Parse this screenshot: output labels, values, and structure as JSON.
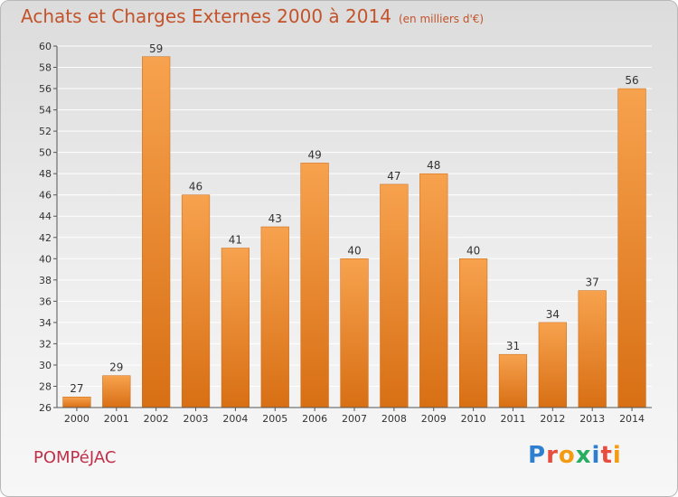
{
  "header": {
    "title": "Achats et Charges Externes 2000 à 2014",
    "subtitle": "(en milliers d'€)"
  },
  "footer": {
    "commune": "POMPéJAC",
    "brand_letters": [
      "P",
      "r",
      "o",
      "x",
      "i",
      "t",
      "i"
    ],
    "brand_colors": [
      "#2f7fd1",
      "#e74c3c",
      "#f39c12",
      "#27ae60",
      "#2f7fd1",
      "#e74c3c",
      "#f39c12"
    ]
  },
  "chart_data": {
    "type": "bar",
    "title": "Achats et Charges Externes 2000 à 2014",
    "categories": [
      "2000",
      "2001",
      "2002",
      "2003",
      "2004",
      "2005",
      "2006",
      "2007",
      "2008",
      "2009",
      "2010",
      "2011",
      "2012",
      "2013",
      "2014"
    ],
    "values": [
      27,
      29,
      59,
      46,
      41,
      43,
      49,
      40,
      47,
      48,
      40,
      31,
      34,
      37,
      56
    ],
    "ylim": [
      26,
      60
    ],
    "yticks": [
      26,
      28,
      30,
      32,
      34,
      36,
      38,
      40,
      42,
      44,
      46,
      48,
      50,
      52,
      54,
      56,
      58,
      60
    ],
    "grid": true,
    "bar_color_light": "#f7a24e",
    "bar_color_dark": "#d86f14"
  }
}
